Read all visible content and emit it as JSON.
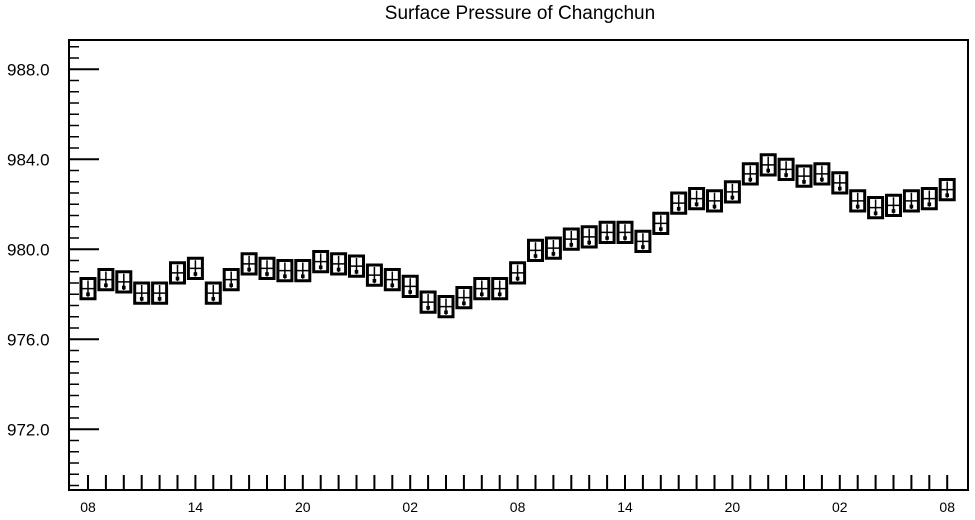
{
  "chart_data": {
    "type": "boxplot",
    "title": "Surface Pressure of Changchun",
    "xlabel": "",
    "ylabel": "",
    "ylim": [
      969.3,
      989.3
    ],
    "y_ticks": [
      972.0,
      976.0,
      980.0,
      984.0,
      988.0
    ],
    "y_tick_labels": [
      "972.0",
      "976.0",
      "980.0",
      "984.0",
      "988.0"
    ],
    "y_minor_step": 0.5,
    "x_ticks": [
      0,
      6,
      12,
      18,
      24,
      30,
      36,
      42,
      48
    ],
    "x_tick_labels": [
      "08",
      "14",
      "20",
      "02",
      "08",
      "14",
      "20",
      "02",
      "08"
    ],
    "x_hours": [
      0,
      1,
      2,
      3,
      4,
      5,
      6,
      7,
      8,
      9,
      10,
      11,
      12,
      13,
      14,
      15,
      16,
      17,
      18,
      19,
      20,
      21,
      22,
      23,
      24,
      25,
      26,
      27,
      28,
      29,
      30,
      31,
      32,
      33,
      34,
      35,
      36,
      37,
      38,
      39,
      40,
      41,
      42,
      43,
      44,
      45,
      46,
      47,
      48
    ],
    "box_low": [
      977.8,
      978.2,
      978.1,
      977.6,
      977.6,
      978.5,
      978.7,
      977.6,
      978.2,
      978.9,
      978.7,
      978.6,
      978.6,
      979.0,
      978.9,
      978.8,
      978.4,
      978.2,
      977.9,
      977.2,
      977.0,
      977.4,
      977.8,
      977.8,
      978.5,
      979.5,
      979.6,
      980.0,
      980.1,
      980.3,
      980.3,
      979.9,
      980.7,
      981.6,
      981.8,
      981.7,
      982.1,
      982.9,
      983.3,
      983.1,
      982.8,
      982.9,
      982.5,
      981.7,
      981.4,
      981.5,
      981.7,
      981.8,
      982.2
    ],
    "box_high": [
      978.7,
      979.1,
      979.0,
      978.5,
      978.5,
      979.4,
      979.6,
      978.5,
      979.1,
      979.8,
      979.6,
      979.5,
      979.5,
      979.9,
      979.8,
      979.7,
      979.3,
      979.1,
      978.8,
      978.1,
      977.9,
      978.3,
      978.7,
      978.7,
      979.4,
      980.4,
      980.5,
      980.9,
      981.0,
      981.2,
      981.2,
      980.8,
      981.6,
      982.5,
      982.7,
      982.6,
      983.0,
      983.8,
      984.2,
      984.0,
      983.7,
      983.8,
      983.4,
      982.6,
      982.3,
      982.4,
      982.6,
      982.7,
      983.1
    ],
    "median": [
      978.25,
      978.65,
      978.55,
      978.05,
      978.05,
      978.95,
      979.15,
      978.05,
      978.65,
      979.35,
      979.15,
      979.05,
      979.05,
      979.45,
      979.35,
      979.25,
      978.85,
      978.65,
      978.35,
      977.65,
      977.45,
      977.85,
      978.25,
      978.25,
      978.95,
      979.95,
      980.05,
      980.45,
      980.55,
      980.75,
      980.75,
      980.35,
      981.15,
      982.05,
      982.25,
      982.15,
      982.55,
      983.35,
      983.75,
      983.55,
      983.25,
      983.35,
      982.95,
      982.15,
      981.85,
      981.95,
      982.15,
      982.25,
      982.65
    ],
    "mean": [
      978.0,
      978.4,
      978.3,
      977.8,
      977.8,
      978.7,
      978.9,
      977.8,
      978.4,
      979.1,
      978.9,
      978.8,
      978.8,
      979.2,
      979.1,
      979.0,
      978.6,
      978.4,
      978.1,
      977.4,
      977.2,
      977.6,
      978.0,
      978.0,
      978.7,
      979.7,
      979.8,
      980.2,
      980.3,
      980.5,
      980.5,
      980.1,
      980.9,
      981.8,
      982.0,
      981.9,
      982.3,
      983.1,
      983.5,
      983.3,
      983.0,
      983.1,
      982.7,
      981.9,
      981.6,
      981.7,
      981.9,
      982.0,
      982.4
    ]
  }
}
